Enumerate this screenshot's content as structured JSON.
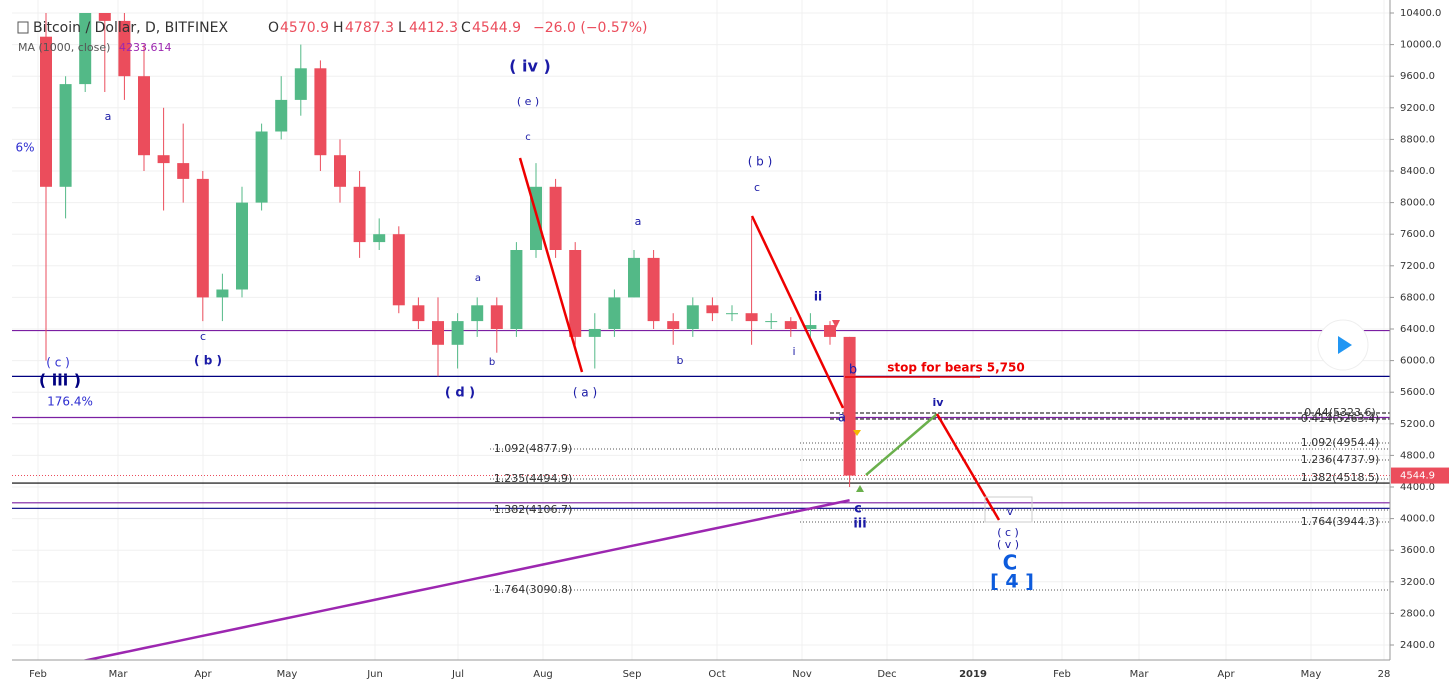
{
  "chart_data": {
    "type": "candlestick",
    "header": {
      "symbol": "Bitcoin / Dollar, D, BITFINEX",
      "o": "O",
      "open": "4570.9",
      "h": "H",
      "high": "4787.3",
      "l": "L",
      "low": "4412.3",
      "c": "C",
      "close": "4544.9",
      "change": "−26.0 (−0.57%)"
    },
    "ma": {
      "name": "MA (1000, close)",
      "value": "4233.614",
      "color": "#9c27b0",
      "values": [
        2100,
        2152,
        2204,
        2256,
        2308,
        2360,
        2412,
        2464,
        2516,
        2568,
        2620,
        2672,
        2724,
        2776,
        2828,
        2880,
        2932,
        2984,
        3036,
        3088,
        3140,
        3192,
        3244,
        3296,
        3348,
        3400,
        3452,
        3504,
        3556,
        3608,
        3660,
        3712,
        3764,
        3816,
        3868,
        3920,
        3972,
        4024,
        4076,
        4128,
        4180,
        4232
      ]
    },
    "up_color": "#53b987",
    "down_color": "#eb4d5c",
    "ohlc": [
      [
        10100,
        10400,
        6000,
        8200
      ],
      [
        8200,
        9600,
        7800,
        9500
      ],
      [
        9500,
        10400,
        9400,
        10400
      ],
      [
        10400,
        10400,
        9400,
        10300
      ],
      [
        10300,
        10400,
        9300,
        9600
      ],
      [
        9600,
        10000,
        8400,
        8600
      ],
      [
        8600,
        9200,
        7900,
        8500
      ],
      [
        8500,
        9000,
        8000,
        8300
      ],
      [
        8300,
        8400,
        6500,
        6800
      ],
      [
        6800,
        7100,
        6500,
        6900
      ],
      [
        6900,
        8200,
        6800,
        8000
      ],
      [
        8000,
        9000,
        7900,
        8900
      ],
      [
        8900,
        9600,
        8800,
        9300
      ],
      [
        9300,
        10000,
        9100,
        9700
      ],
      [
        9700,
        9800,
        8400,
        8600
      ],
      [
        8600,
        8800,
        8000,
        8200
      ],
      [
        8200,
        8400,
        7300,
        7500
      ],
      [
        7500,
        7800,
        7400,
        7600
      ],
      [
        7600,
        7700,
        6600,
        6700
      ],
      [
        6700,
        6800,
        6400,
        6500
      ],
      [
        6500,
        6800,
        5800,
        6200
      ],
      [
        6200,
        6600,
        5900,
        6500
      ],
      [
        6500,
        6800,
        6300,
        6700
      ],
      [
        6700,
        6800,
        6100,
        6400
      ],
      [
        6400,
        7500,
        6300,
        7400
      ],
      [
        7400,
        8500,
        7300,
        8200
      ],
      [
        8200,
        8300,
        7300,
        7400
      ],
      [
        7400,
        7500,
        6200,
        6300
      ],
      [
        6300,
        6600,
        5900,
        6400
      ],
      [
        6400,
        6900,
        6300,
        6800
      ],
      [
        6800,
        7400,
        6800,
        7300
      ],
      [
        7300,
        7400,
        6400,
        6500
      ],
      [
        6500,
        6600,
        6200,
        6400
      ],
      [
        6400,
        6800,
        6300,
        6700
      ],
      [
        6700,
        6800,
        6500,
        6600
      ],
      [
        6600,
        6700,
        6500,
        6600
      ],
      [
        6600,
        7800,
        6200,
        6500
      ],
      [
        6500,
        6600,
        6400,
        6500
      ],
      [
        6500,
        6550,
        6300,
        6400
      ],
      [
        6400,
        6600,
        6300,
        6450
      ],
      [
        6450,
        6500,
        6200,
        6300
      ],
      [
        6300,
        6300,
        4400,
        4545
      ]
    ],
    "hlines": [
      {
        "value": 6380,
        "color": "#7b1fa2"
      },
      {
        "value": 5800,
        "color": "#000080"
      },
      {
        "value": 5280,
        "color": "#7b1fa2"
      },
      {
        "value": 4450,
        "color": "#000000"
      },
      {
        "value": 4200,
        "color": "#7b1fa2"
      },
      {
        "value": 4130,
        "color": "#000080"
      }
    ],
    "last_price": 4544.9,
    "ylim": [
      2400,
      10400
    ],
    "yticks": [
      {
        "value": 10400,
        "label": "10400.0"
      },
      {
        "value": 10000,
        "label": "10000.0"
      },
      {
        "value": 9600,
        "label": "9600.0"
      },
      {
        "value": 9200,
        "label": "9200.0"
      },
      {
        "value": 8800,
        "label": "8800.0"
      },
      {
        "value": 8400,
        "label": "8400.0"
      },
      {
        "value": 8000,
        "label": "8000.0"
      },
      {
        "value": 7600,
        "label": "7600.0"
      },
      {
        "value": 7200,
        "label": "7200.0"
      },
      {
        "value": 6800,
        "label": "6800.0"
      },
      {
        "value": 6400,
        "label": "6400.0"
      },
      {
        "value": 6000,
        "label": "6000.0"
      },
      {
        "value": 5600,
        "label": "5600.0"
      },
      {
        "value": 5200,
        "label": "5200.0"
      },
      {
        "value": 4800,
        "label": "4800.0"
      },
      {
        "value": 4400,
        "label": "4400.0"
      },
      {
        "value": 4000,
        "label": "4000.0"
      },
      {
        "value": 3600,
        "label": "3600.0"
      },
      {
        "value": 3200,
        "label": "3200.0"
      },
      {
        "value": 2800,
        "label": "2800.0"
      },
      {
        "value": 2400,
        "label": "2400.0"
      }
    ],
    "x_labels": [
      "Feb",
      "Mar",
      "Apr",
      "May",
      "Jun",
      "Jul",
      "Aug",
      "Sep",
      "Oct",
      "Nov",
      "Dec",
      "2019",
      "Feb",
      "Mar",
      "Apr",
      "May",
      "28"
    ],
    "annotations": [
      "( iii )",
      "( c )",
      "176.4%",
      "6%",
      "a",
      "c",
      "( b )",
      "( iv )",
      "( e )",
      "c",
      "a",
      "b",
      "( d )",
      "( a )",
      "a",
      "b",
      "( b )",
      "c",
      "ii",
      "i",
      "b",
      "a",
      "c",
      "iii",
      "iv",
      "v",
      "( c )",
      "( v )",
      "C",
      "[ 4 ]",
      "stop for bears 5,750",
      "1.092(4877.9)",
      "1.235(4494.9)",
      "1.382(4106.7)",
      "1.764(3090.8)",
      "0.44(5323.6)",
      "0.414(5263.4)",
      "1.092(4954.4)",
      "1.236(4737.9)",
      "1.382(4518.5)",
      "1.764(3944.3)"
    ]
  }
}
